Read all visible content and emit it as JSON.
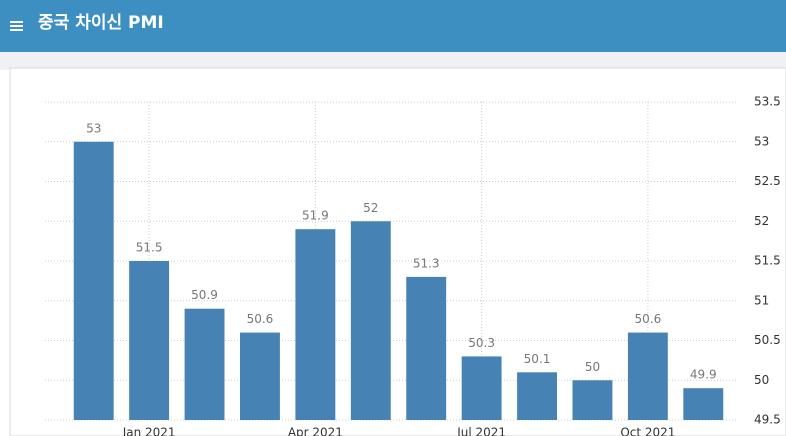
{
  "chart_data": {
    "type": "bar",
    "title": "중국 차이신 PMI",
    "categories": [
      null,
      "Jan 2021",
      null,
      null,
      "Apr 2021",
      null,
      null,
      "Jul 2021",
      null,
      null,
      "Oct 2021",
      null
    ],
    "values": [
      53,
      51.5,
      50.9,
      50.6,
      51.9,
      52,
      51.3,
      50.3,
      50.1,
      50,
      50.6,
      49.9
    ],
    "color": "#4682b4",
    "ylim": [
      49.5,
      53.5
    ],
    "yticks": [
      49.5,
      50,
      50.5,
      51,
      51.5,
      52,
      52.5,
      53,
      53.5
    ],
    "grid": true
  }
}
